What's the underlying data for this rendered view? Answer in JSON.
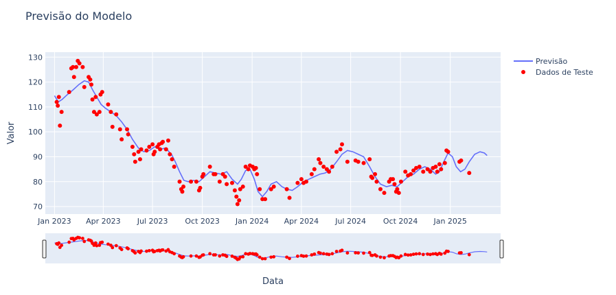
{
  "chart_data": {
    "type": "line",
    "title": "Previsão do Modelo",
    "xlabel": "Data",
    "ylabel": "Valor",
    "xlim": [
      "2022-12-15",
      "2025-04-04"
    ],
    "ylim": [
      67,
      132
    ],
    "x_ticks": [
      {
        "date": "2023-01-01",
        "label": "Jan 2023"
      },
      {
        "date": "2023-04-01",
        "label": "Apr 2023"
      },
      {
        "date": "2023-07-01",
        "label": "Jul 2023"
      },
      {
        "date": "2023-10-01",
        "label": "Oct 2023"
      },
      {
        "date": "2024-01-01",
        "label": "Jan 2024"
      },
      {
        "date": "2024-04-01",
        "label": "Apr 2024"
      },
      {
        "date": "2024-07-01",
        "label": "Jul 2024"
      },
      {
        "date": "2024-10-01",
        "label": "Oct 2024"
      },
      {
        "date": "2025-01-01",
        "label": "Jan 2025"
      }
    ],
    "y_ticks": [
      70,
      80,
      90,
      100,
      110,
      120,
      130
    ],
    "grid": true,
    "legend_position": "top-right",
    "rangeslider": true,
    "series": [
      {
        "name": "Previsão",
        "type": "line",
        "color": "#636efa",
        "points": [
          [
            "2023-01-01",
            114.5
          ],
          [
            "2023-01-08",
            112
          ],
          [
            "2023-01-15",
            113
          ],
          [
            "2023-01-25",
            115
          ],
          [
            "2023-02-05",
            117
          ],
          [
            "2023-02-15",
            119
          ],
          [
            "2023-02-25",
            120.5
          ],
          [
            "2023-03-05",
            120
          ],
          [
            "2023-03-12",
            117
          ],
          [
            "2023-03-20",
            114
          ],
          [
            "2023-03-28",
            111
          ],
          [
            "2023-04-05",
            109.5
          ],
          [
            "2023-04-15",
            108
          ],
          [
            "2023-04-25",
            106.5
          ],
          [
            "2023-05-05",
            104
          ],
          [
            "2023-05-15",
            101
          ],
          [
            "2023-05-25",
            97
          ],
          [
            "2023-06-05",
            93.5
          ],
          [
            "2023-06-15",
            92
          ],
          [
            "2023-06-25",
            92.5
          ],
          [
            "2023-07-05",
            94
          ],
          [
            "2023-07-15",
            93
          ],
          [
            "2023-07-25",
            93.5
          ],
          [
            "2023-08-05",
            91
          ],
          [
            "2023-08-12",
            88
          ],
          [
            "2023-08-20",
            84
          ],
          [
            "2023-08-28",
            80.5
          ],
          [
            "2023-09-05",
            80
          ],
          [
            "2023-09-15",
            80.5
          ],
          [
            "2023-09-25",
            80
          ],
          [
            "2023-10-05",
            82
          ],
          [
            "2023-10-15",
            84
          ],
          [
            "2023-10-25",
            83.5
          ],
          [
            "2023-11-05",
            83
          ],
          [
            "2023-11-15",
            84
          ],
          [
            "2023-11-25",
            81
          ],
          [
            "2023-12-05",
            79
          ],
          [
            "2023-12-12",
            81
          ],
          [
            "2023-12-20",
            84.5
          ],
          [
            "2023-12-28",
            85
          ],
          [
            "2024-01-05",
            81
          ],
          [
            "2024-01-12",
            76
          ],
          [
            "2024-01-20",
            74
          ],
          [
            "2024-01-28",
            76
          ],
          [
            "2024-02-05",
            79
          ],
          [
            "2024-02-15",
            80
          ],
          [
            "2024-02-25",
            78
          ],
          [
            "2024-03-05",
            77
          ],
          [
            "2024-03-15",
            76.5
          ],
          [
            "2024-03-25",
            78
          ],
          [
            "2024-04-05",
            80
          ],
          [
            "2024-04-15",
            81
          ],
          [
            "2024-04-25",
            82
          ],
          [
            "2024-05-05",
            83
          ],
          [
            "2024-05-15",
            83.5
          ],
          [
            "2024-05-25",
            85
          ],
          [
            "2024-06-05",
            88
          ],
          [
            "2024-06-15",
            91
          ],
          [
            "2024-06-25",
            92.5
          ],
          [
            "2024-07-05",
            92
          ],
          [
            "2024-07-15",
            91
          ],
          [
            "2024-07-25",
            90
          ],
          [
            "2024-08-05",
            86
          ],
          [
            "2024-08-15",
            82
          ],
          [
            "2024-08-25",
            79
          ],
          [
            "2024-09-05",
            78
          ],
          [
            "2024-09-15",
            78.5
          ],
          [
            "2024-09-25",
            78
          ],
          [
            "2024-10-05",
            80
          ],
          [
            "2024-10-15",
            82
          ],
          [
            "2024-10-25",
            83
          ],
          [
            "2024-11-05",
            85
          ],
          [
            "2024-11-15",
            86
          ],
          [
            "2024-11-25",
            85
          ],
          [
            "2024-12-05",
            83
          ],
          [
            "2024-12-12",
            84
          ],
          [
            "2024-12-20",
            88
          ],
          [
            "2024-12-28",
            91.5
          ],
          [
            "2025-01-05",
            90
          ],
          [
            "2025-01-12",
            86
          ],
          [
            "2025-01-20",
            84
          ],
          [
            "2025-01-28",
            85
          ],
          [
            "2025-02-05",
            88
          ],
          [
            "2025-02-15",
            91
          ],
          [
            "2025-02-25",
            92
          ],
          [
            "2025-03-05",
            91.5
          ],
          [
            "2025-03-10",
            90.5
          ]
        ]
      },
      {
        "name": "Dados de Teste",
        "type": "scatter",
        "color": "#ff0000",
        "points": [
          [
            "2023-01-05",
            112
          ],
          [
            "2023-01-07",
            110.5
          ],
          [
            "2023-01-09",
            114
          ],
          [
            "2023-01-11",
            102.5
          ],
          [
            "2023-01-14",
            108
          ],
          [
            "2023-01-28",
            116
          ],
          [
            "2023-02-01",
            125.5
          ],
          [
            "2023-02-04",
            126
          ],
          [
            "2023-02-06",
            122
          ],
          [
            "2023-02-10",
            126
          ],
          [
            "2023-02-13",
            128.5
          ],
          [
            "2023-02-16",
            127.5
          ],
          [
            "2023-02-22",
            126
          ],
          [
            "2023-02-25",
            118
          ],
          [
            "2023-03-05",
            122
          ],
          [
            "2023-03-08",
            121
          ],
          [
            "2023-03-10",
            119
          ],
          [
            "2023-03-12",
            113
          ],
          [
            "2023-03-15",
            108
          ],
          [
            "2023-03-18",
            114
          ],
          [
            "2023-03-20",
            107
          ],
          [
            "2023-03-25",
            108
          ],
          [
            "2023-03-27",
            115
          ],
          [
            "2023-03-30",
            116
          ],
          [
            "2023-04-10",
            111
          ],
          [
            "2023-04-15",
            108
          ],
          [
            "2023-04-18",
            102
          ],
          [
            "2023-04-25",
            107
          ],
          [
            "2023-05-02",
            101
          ],
          [
            "2023-05-05",
            97
          ],
          [
            "2023-05-15",
            101
          ],
          [
            "2023-05-17",
            99
          ],
          [
            "2023-05-25",
            94
          ],
          [
            "2023-05-28",
            91
          ],
          [
            "2023-05-30",
            88
          ],
          [
            "2023-06-05",
            92
          ],
          [
            "2023-06-08",
            89
          ],
          [
            "2023-06-10",
            93
          ],
          [
            "2023-06-20",
            92.5
          ],
          [
            "2023-06-25",
            94
          ],
          [
            "2023-07-01",
            95
          ],
          [
            "2023-07-03",
            91
          ],
          [
            "2023-07-05",
            92
          ],
          [
            "2023-07-10",
            94
          ],
          [
            "2023-07-13",
            95
          ],
          [
            "2023-07-15",
            93
          ],
          [
            "2023-07-18",
            95.5
          ],
          [
            "2023-07-20",
            96
          ],
          [
            "2023-07-26",
            93
          ],
          [
            "2023-07-30",
            96.5
          ],
          [
            "2023-08-02",
            91
          ],
          [
            "2023-08-06",
            89
          ],
          [
            "2023-08-10",
            86
          ],
          [
            "2023-08-20",
            80
          ],
          [
            "2023-08-23",
            77
          ],
          [
            "2023-08-25",
            76
          ],
          [
            "2023-08-27",
            78
          ],
          [
            "2023-09-10",
            80
          ],
          [
            "2023-09-20",
            80
          ],
          [
            "2023-09-25",
            76.5
          ],
          [
            "2023-09-27",
            77.5
          ],
          [
            "2023-10-01",
            82
          ],
          [
            "2023-10-03",
            83
          ],
          [
            "2023-10-15",
            86
          ],
          [
            "2023-10-22",
            83
          ],
          [
            "2023-10-25",
            83
          ],
          [
            "2023-11-02",
            80
          ],
          [
            "2023-11-08",
            83
          ],
          [
            "2023-11-12",
            82
          ],
          [
            "2023-11-15",
            79
          ],
          [
            "2023-11-25",
            79.5
          ],
          [
            "2023-11-30",
            76.5
          ],
          [
            "2023-12-03",
            74
          ],
          [
            "2023-12-05",
            71
          ],
          [
            "2023-12-08",
            72.5
          ],
          [
            "2023-12-10",
            77
          ],
          [
            "2023-12-15",
            78
          ],
          [
            "2023-12-20",
            86
          ],
          [
            "2023-12-25",
            85
          ],
          [
            "2023-12-28",
            86.5
          ],
          [
            "2024-01-02",
            86
          ],
          [
            "2024-01-05",
            85
          ],
          [
            "2024-01-08",
            85.5
          ],
          [
            "2024-01-10",
            83
          ],
          [
            "2024-01-15",
            77
          ],
          [
            "2024-01-20",
            73
          ],
          [
            "2024-01-25",
            73
          ],
          [
            "2024-02-05",
            77
          ],
          [
            "2024-02-10",
            78
          ],
          [
            "2024-03-05",
            77
          ],
          [
            "2024-03-10",
            73.5
          ],
          [
            "2024-03-25",
            79.5
          ],
          [
            "2024-04-01",
            81
          ],
          [
            "2024-04-05",
            79.5
          ],
          [
            "2024-04-10",
            80
          ],
          [
            "2024-04-20",
            83
          ],
          [
            "2024-04-25",
            85
          ],
          [
            "2024-05-03",
            89
          ],
          [
            "2024-05-06",
            87.5
          ],
          [
            "2024-05-12",
            86
          ],
          [
            "2024-05-18",
            85
          ],
          [
            "2024-05-22",
            84
          ],
          [
            "2024-05-28",
            86
          ],
          [
            "2024-06-05",
            92
          ],
          [
            "2024-06-12",
            93
          ],
          [
            "2024-06-15",
            95
          ],
          [
            "2024-06-25",
            88
          ],
          [
            "2024-07-10",
            88.5
          ],
          [
            "2024-07-15",
            88
          ],
          [
            "2024-07-25",
            87.5
          ],
          [
            "2024-08-05",
            89
          ],
          [
            "2024-08-08",
            82
          ],
          [
            "2024-08-10",
            81.5
          ],
          [
            "2024-08-15",
            83
          ],
          [
            "2024-08-18",
            80
          ],
          [
            "2024-08-25",
            77
          ],
          [
            "2024-09-01",
            75.5
          ],
          [
            "2024-09-10",
            80
          ],
          [
            "2024-09-13",
            81
          ],
          [
            "2024-09-17",
            81
          ],
          [
            "2024-09-20",
            79
          ],
          [
            "2024-09-23",
            76
          ],
          [
            "2024-09-25",
            77
          ],
          [
            "2024-09-28",
            75.5
          ],
          [
            "2024-10-02",
            80
          ],
          [
            "2024-10-10",
            84
          ],
          [
            "2024-10-15",
            82.5
          ],
          [
            "2024-10-20",
            83
          ],
          [
            "2024-10-25",
            84.5
          ],
          [
            "2024-10-30",
            85.5
          ],
          [
            "2024-11-05",
            86
          ],
          [
            "2024-11-12",
            84
          ],
          [
            "2024-11-20",
            85
          ],
          [
            "2024-11-25",
            84
          ],
          [
            "2024-11-30",
            85.5
          ],
          [
            "2024-12-05",
            86
          ],
          [
            "2024-12-08",
            84
          ],
          [
            "2024-12-12",
            87
          ],
          [
            "2024-12-15",
            85
          ],
          [
            "2024-12-22",
            87.5
          ],
          [
            "2024-12-25",
            92.5
          ],
          [
            "2024-12-28",
            92
          ],
          [
            "2025-01-18",
            88
          ],
          [
            "2025-01-21",
            88.5
          ],
          [
            "2025-02-05",
            83.5
          ]
        ]
      }
    ]
  }
}
